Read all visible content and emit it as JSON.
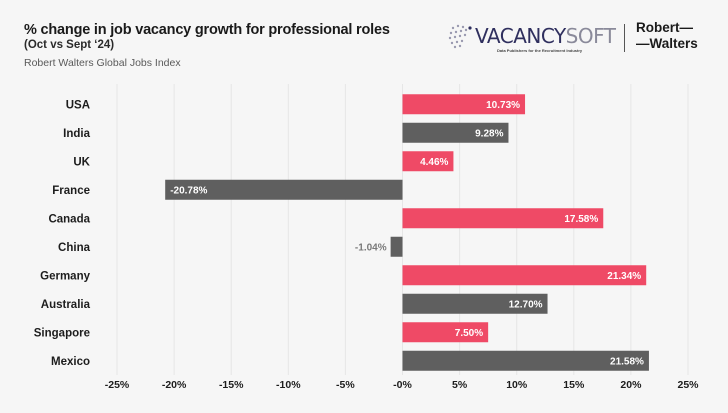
{
  "header": {
    "title": "% change in job vacancy growth for professional roles",
    "subtitle": "(Oct vs Sept ‘24)",
    "source": "Robert Walters Global Jobs Index"
  },
  "logos": {
    "vacancysoft_primary": "VACANCY",
    "vacancysoft_secondary": "SOFT",
    "vacancysoft_tagline": "Data Publishers for the Recruitment Industry",
    "robert_walters_line1": "Robert—",
    "robert_walters_line2": "—Walters"
  },
  "colors": {
    "pink": "#ef4a66",
    "gray": "#5f5f5f",
    "grid": "#e6e6e6",
    "outside_label": "#7a7a7a"
  },
  "chart_data": {
    "type": "bar",
    "orientation": "horizontal",
    "title": "% change in job vacancy growth for professional roles",
    "subtitle": "(Oct vs Sept ‘24)",
    "xlabel": "",
    "ylabel": "",
    "xlim": [
      -25,
      25
    ],
    "xticks": [
      -25,
      -20,
      -15,
      -10,
      -5,
      0,
      5,
      10,
      15,
      20,
      25
    ],
    "xtick_labels": [
      "-25%",
      "-20%",
      "-15%",
      "-10%",
      "-5%",
      "-0%",
      "5%",
      "10%",
      "15%",
      "20%",
      "25%"
    ],
    "grid": "vertical",
    "categories": [
      "USA",
      "India",
      "UK",
      "France",
      "Canada",
      "China",
      "Germany",
      "Australia",
      "Singapore",
      "Mexico"
    ],
    "values": [
      10.73,
      9.28,
      4.46,
      -20.78,
      17.58,
      -1.04,
      21.34,
      12.7,
      7.5,
      21.58
    ],
    "value_labels": [
      "10.73%",
      "9.28%",
      "4.46%",
      "-20.78%",
      "17.58%",
      "-1.04%",
      "21.34%",
      "12.70%",
      "7.50%",
      "21.58%"
    ],
    "bar_colors": [
      "pink",
      "gray",
      "pink",
      "gray",
      "pink",
      "gray",
      "pink",
      "gray",
      "pink",
      "gray"
    ]
  }
}
